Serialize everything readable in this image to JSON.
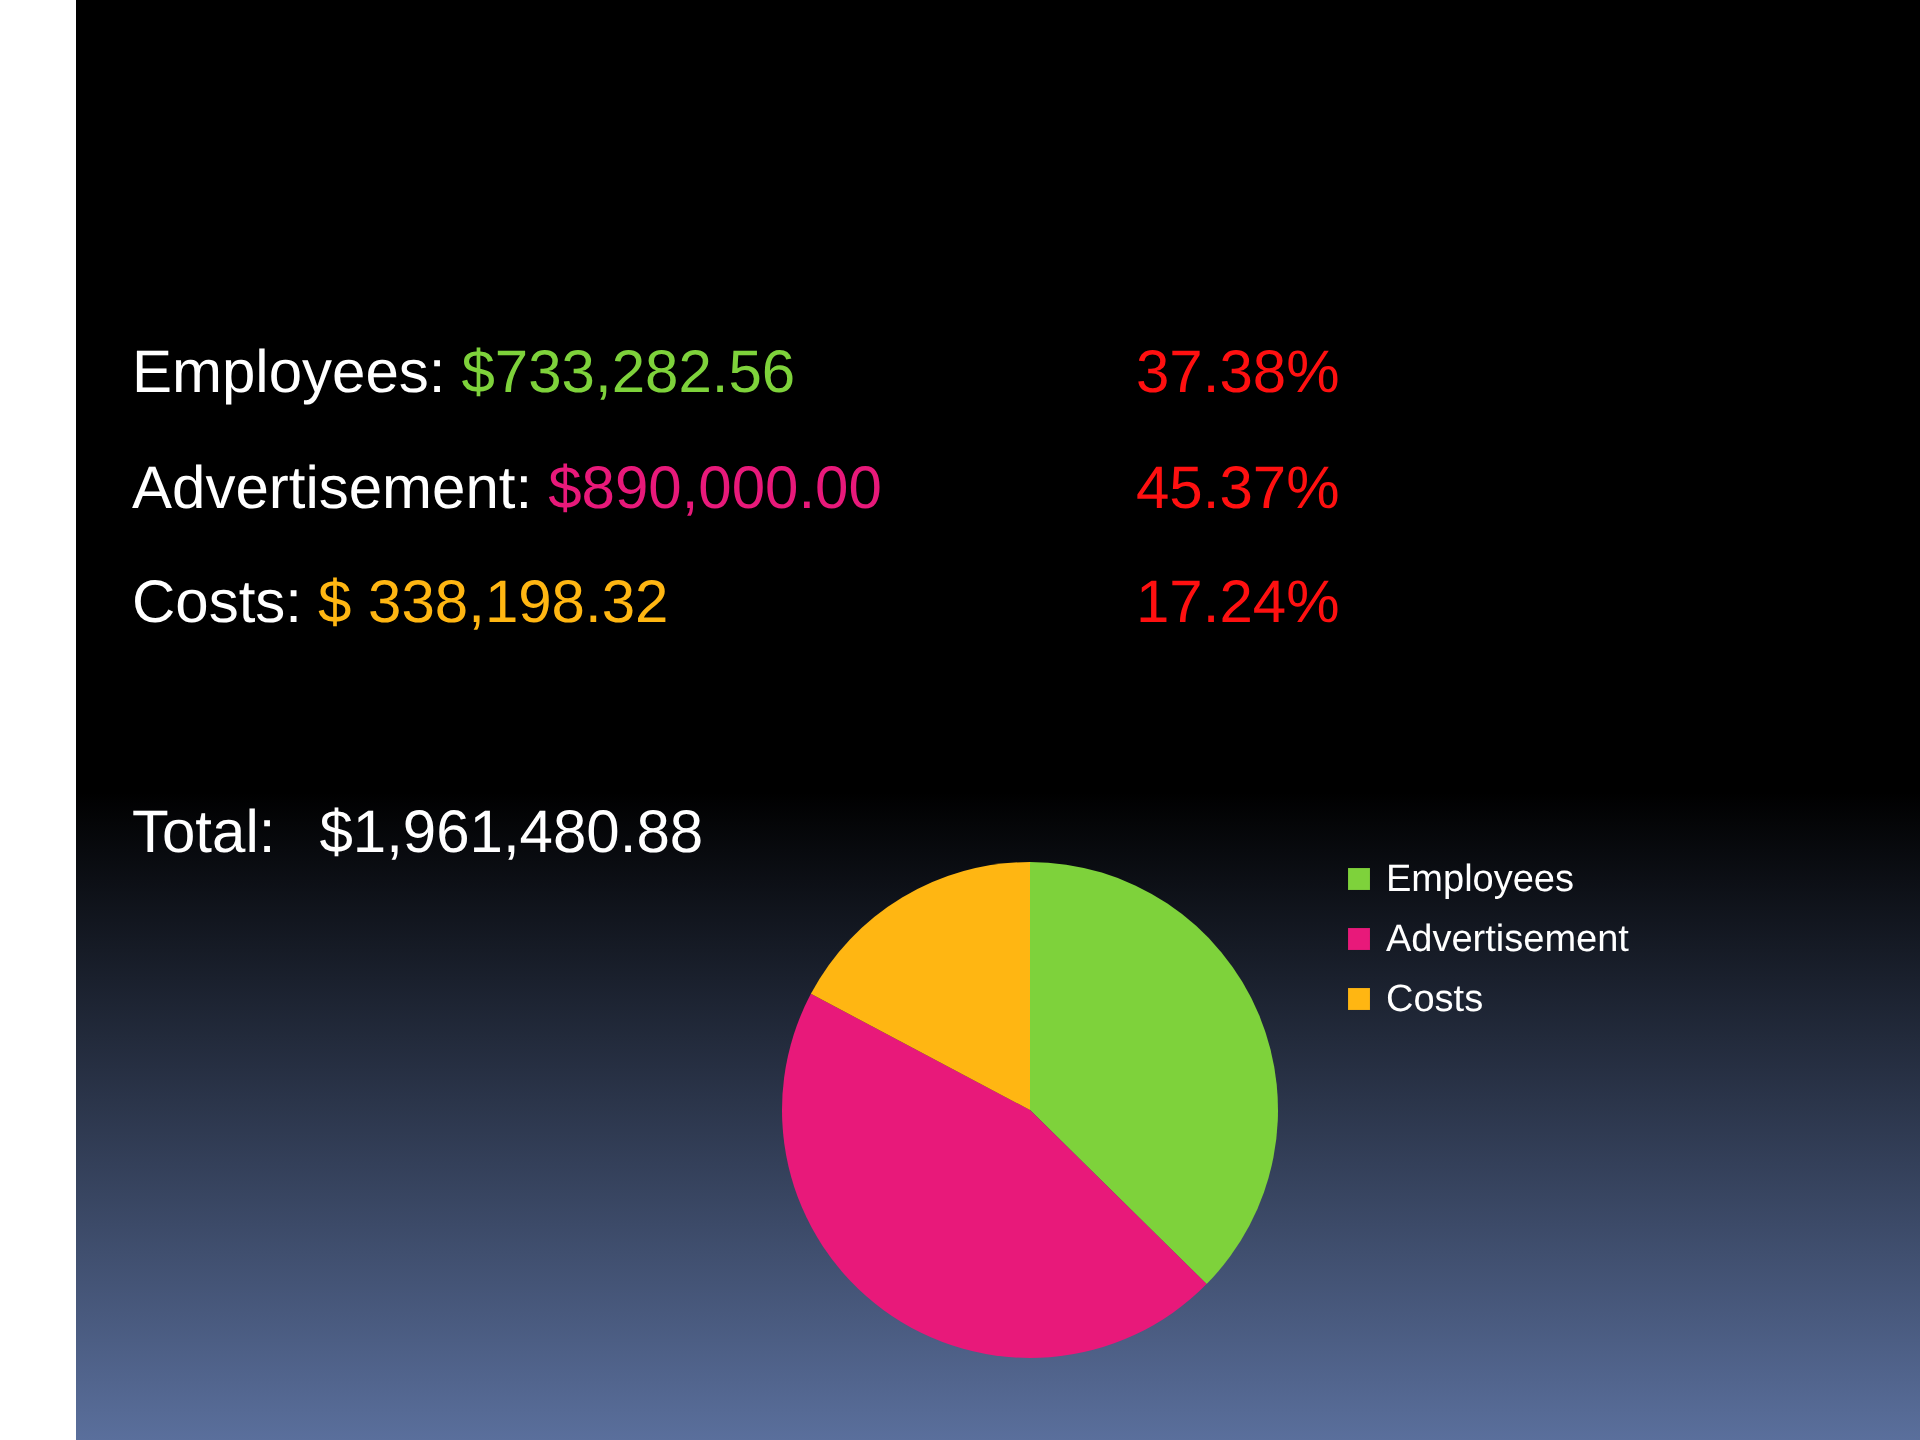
{
  "chart_data": {
    "type": "pie",
    "categories": [
      "Employees",
      "Advertisement",
      "Costs"
    ],
    "values": [
      37.38,
      45.37,
      17.24
    ],
    "colors": [
      "#7ed23b",
      "#e8197a",
      "#ffb612"
    ],
    "legend": "right",
    "annotations": [
      "Employees:",
      "$733,282.56",
      "37.38%",
      "Advertisement:",
      "$890,000.00",
      "45.37%",
      "Costs:",
      "$ 338,198.32",
      "17.24%",
      "Total:",
      "$1,961,480.88"
    ]
  }
}
